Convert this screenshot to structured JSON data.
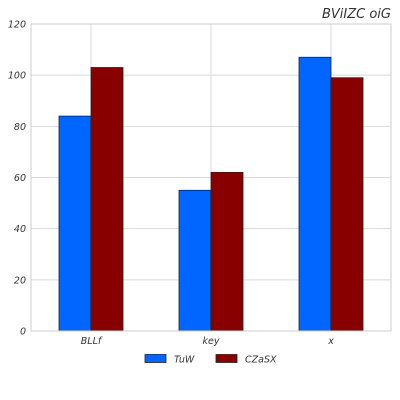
{
  "chart_data": {
    "type": "bar",
    "title": "BViIZC oiG",
    "xlabel": "",
    "ylabel": "",
    "categories": [
      "BLLf",
      "key",
      "x"
    ],
    "series": [
      {
        "name": "TuW",
        "values": [
          84,
          55,
          107
        ],
        "color": "#0066ff"
      },
      {
        "name": "CZaSX",
        "values": [
          103,
          62,
          99
        ],
        "color": "#880000"
      }
    ],
    "ylim": [
      0,
      120
    ],
    "yticks": [
      "0",
      "20",
      "40",
      "60",
      "80",
      "100",
      "120"
    ],
    "grid": true,
    "legend_position": "bottom-center"
  }
}
